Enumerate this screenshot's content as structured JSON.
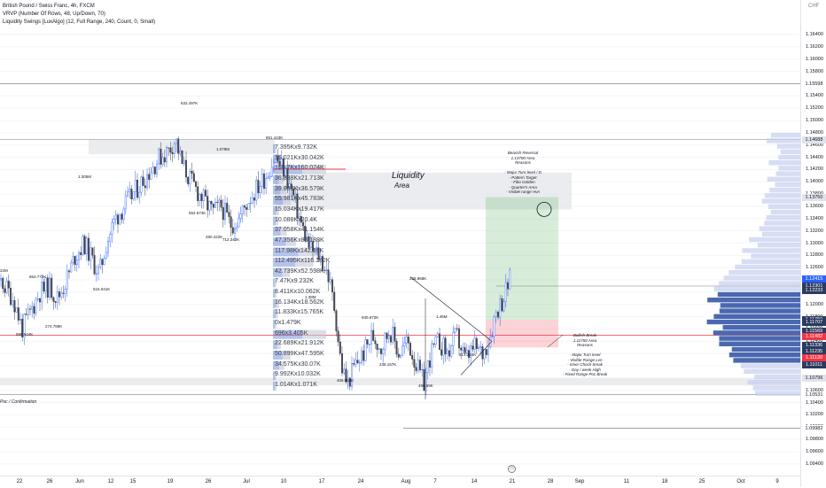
{
  "legend": {
    "line1": "British Pound / Swiss Franc, 4h, FXCM",
    "line2": "VRVP (Number Of Rows, 48, Up/Down, 70)",
    "line3": "Liquidity Swings [LuxAlgo] (12, Full Range, 240, Count, 0, Small)"
  },
  "currency": "CHF",
  "price_ticks": [
    {
      "label": "1.16400",
      "price": 1.164
    },
    {
      "label": "1.16200",
      "price": 1.162
    },
    {
      "label": "1.16000",
      "price": 1.16
    },
    {
      "label": "1.15800",
      "price": 1.158
    },
    {
      "label": "1.15400",
      "price": 1.154
    },
    {
      "label": "1.15200",
      "price": 1.152
    },
    {
      "label": "1.15000",
      "price": 1.15
    },
    {
      "label": "1.14800",
      "price": 1.148
    },
    {
      "label": "1.14600",
      "price": 1.146
    },
    {
      "label": "1.14400",
      "price": 1.144
    },
    {
      "label": "1.14200",
      "price": 1.142
    },
    {
      "label": "1.14000",
      "price": 1.14
    },
    {
      "label": "1.13800",
      "price": 1.138
    },
    {
      "label": "1.13600",
      "price": 1.136
    },
    {
      "label": "1.13400",
      "price": 1.134
    },
    {
      "label": "1.13200",
      "price": 1.132
    },
    {
      "label": "1.13000",
      "price": 1.13
    },
    {
      "label": "1.12800",
      "price": 1.128
    },
    {
      "label": "1.12600",
      "price": 1.126
    },
    {
      "label": "1.12400",
      "price": 1.124
    },
    {
      "label": "1.12200",
      "price": 1.122
    },
    {
      "label": "1.12000",
      "price": 1.12
    },
    {
      "label": "1.11800",
      "price": 1.118
    },
    {
      "label": "1.11600",
      "price": 1.116
    },
    {
      "label": "1.11400",
      "price": 1.114
    },
    {
      "label": "1.11200",
      "price": 1.112
    },
    {
      "label": "1.11000",
      "price": 1.11
    },
    {
      "label": "1.10800",
      "price": 1.108
    },
    {
      "label": "1.10600",
      "price": 1.106
    },
    {
      "label": "1.10400",
      "price": 1.104
    },
    {
      "label": "1.10200",
      "price": 1.102
    },
    {
      "label": "1.10000",
      "price": 1.1
    },
    {
      "label": "1.09800",
      "price": 1.098
    },
    {
      "label": "1.09600",
      "price": 1.096
    },
    {
      "label": "1.09400",
      "price": 1.094
    }
  ],
  "price_labels": [
    {
      "label": "1.15598",
      "price": 1.15598,
      "color": "#ffffff",
      "text": "#131722"
    },
    {
      "label": "1.14688",
      "price": 1.14688,
      "color": "#e0e3eb",
      "text": "#131722"
    },
    {
      "label": "1.13750",
      "price": 1.1375,
      "color": "#e0e3eb",
      "text": "#131722"
    },
    {
      "label": "1.12415",
      "price": 1.12415,
      "color": "#2962ff",
      "text": "#ffffff"
    },
    {
      "label": "1.12301",
      "price": 1.12301,
      "color": "#2b3a5f",
      "text": "#ffffff"
    },
    {
      "label": "1.12233",
      "price": 1.12233,
      "color": "#2b3a5f",
      "text": "#ffffff"
    },
    {
      "label": "1.11750",
      "price": 1.1175,
      "color": "#2b3a5f",
      "text": "#ffffff"
    },
    {
      "label": "1.11707",
      "price": 1.11707,
      "color": "#2b3a5f",
      "text": "#ffffff"
    },
    {
      "label": "1.11569",
      "price": 1.11569,
      "color": "#2b3a5f",
      "text": "#ffffff"
    },
    {
      "label": "1.11482",
      "price": 1.11482,
      "color": "#f23645",
      "text": "#ffffff"
    },
    {
      "label": "1.11336",
      "price": 1.11336,
      "color": "#2b3a5f",
      "text": "#ffffff"
    },
    {
      "label": "1.11235",
      "price": 1.11235,
      "color": "#2b3a5f",
      "text": "#ffffff"
    },
    {
      "label": "1.11130",
      "price": 1.1113,
      "color": "#f23645",
      "text": "#ffffff"
    },
    {
      "label": "1.11011",
      "price": 1.11011,
      "color": "#2b3a5f",
      "text": "#ffffff"
    },
    {
      "label": "1.10796",
      "price": 1.10796,
      "color": "#e0e3eb",
      "text": "#131722"
    },
    {
      "label": "1.10531",
      "price": 1.10531,
      "color": "#ffffff",
      "text": "#131722"
    },
    {
      "label": "1.09982",
      "price": 1.09982,
      "color": "#ffffff",
      "text": "#131722"
    }
  ],
  "time_ticks": [
    "22",
    "26",
    "Jun",
    "12",
    "15",
    "19",
    "26",
    "Jul",
    "10",
    "17",
    "24",
    "Aug",
    "7",
    "14",
    "21",
    "28",
    "Sep",
    "11",
    "18",
    "25",
    "Oct",
    "9"
  ],
  "swing_labels": [
    "632.497K",
    "1.079M",
    "851.443K",
    "1.305M",
    "562.574K",
    "490.422K",
    "712.342K",
    "863.772K",
    "516.041K",
    "274.788K",
    "596.544K",
    "226.968K",
    "940.672K",
    "1.45M",
    "217.244K",
    "238.157K",
    "496.69K",
    "406.053K",
    "1.38M",
    "22M"
  ],
  "vrvp_rows": [
    "7.395Kx9.732K",
    "15.021Kx30.042K",
    "150.7Kx160.024K",
    "36.888Kx21.713K",
    "39.880Kx36.579K",
    "55.981Kx45.783K",
    "15.034Kx19.417K",
    "10.088Kx20.4K",
    "37.058Kx41.154K",
    "47.356Kx83.188K",
    "117.98Kx142.59K",
    "112.495Kx116.182K",
    "42.739Kx52.598K",
    "7.47Kx9.232K",
    "8.411Kx10.062K",
    "16.134Kx18.562K",
    "11.833Kx15.765K",
    "0x1.479K",
    "696x3.405K",
    "22.689Kx21.912K",
    "50.899Kx47.595K",
    "34.575Kx30.07K",
    "9.992Kx10.032K",
    "1.014Kx1.071K"
  ],
  "liquidity": {
    "title": "Liquidity",
    "subtitle": "Area"
  },
  "bearish_notes": [
    "Bearish Reversal",
    "1.13700 Area",
    "Reasons",
    "",
    "- Major Turn level / D",
    "- Pattern Target",
    "- Fibo Golden",
    "- Quarter's Area",
    "- Visible range Hvn"
  ],
  "bullish_notes": [
    "Bullish Break",
    "1.11750 Area",
    "Reasons",
    "",
    "- Major Turn level",
    "- Visible Range Lvn",
    "- Inner Choch break",
    "- Day / week High",
    "- Fixed Range Poc Break"
  ],
  "left_note": "Poc / Confirmation",
  "colors": {
    "up": "#2962ff",
    "down": "#434651",
    "grid": "#f0f3fa",
    "red": "#f23645",
    "green_zone": "#4caf50",
    "red_zone": "#f23645"
  }
}
